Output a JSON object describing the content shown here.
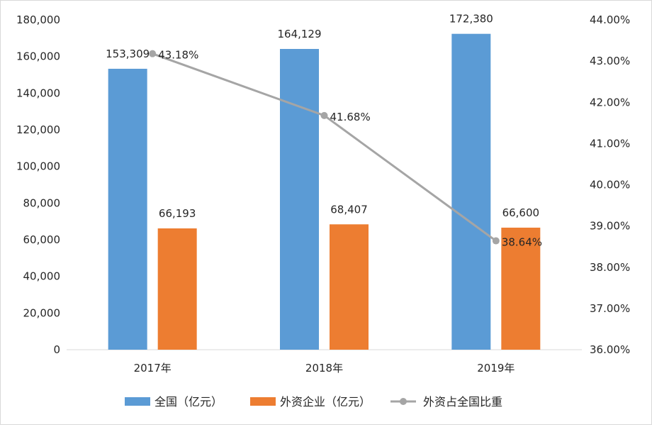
{
  "chart_data": {
    "type": "bar",
    "categories": [
      "2017年",
      "2018年",
      "2019年"
    ],
    "series": [
      {
        "name": "全国（亿元）",
        "type": "bar",
        "axis": "left",
        "color": "#5B9BD5",
        "values": [
          153309,
          164129,
          172380
        ],
        "labels": [
          "153,309",
          "164,129",
          "172,380"
        ]
      },
      {
        "name": "外资企业（亿元）",
        "type": "bar",
        "axis": "left",
        "color": "#ED7D31",
        "values": [
          66193,
          68407,
          66600
        ],
        "labels": [
          "66,193",
          "68,407",
          "66,600"
        ]
      },
      {
        "name": "外资占全国比重",
        "type": "line",
        "axis": "right",
        "color": "#A5A5A5",
        "values": [
          43.18,
          41.68,
          38.64
        ],
        "labels": [
          "43.18%",
          "41.68%",
          "38.64%"
        ]
      }
    ],
    "y_left": {
      "min": 0,
      "max": 180000,
      "ticks": [
        "0",
        "20,000",
        "40,000",
        "60,000",
        "80,000",
        "100,000",
        "120,000",
        "140,000",
        "160,000",
        "180,000"
      ]
    },
    "y_right": {
      "min": 36,
      "max": 44,
      "ticks": [
        "36.00%",
        "37.00%",
        "38.00%",
        "39.00%",
        "40.00%",
        "41.00%",
        "42.00%",
        "43.00%",
        "44.00%"
      ]
    },
    "grid": false,
    "legend_position": "bottom"
  }
}
